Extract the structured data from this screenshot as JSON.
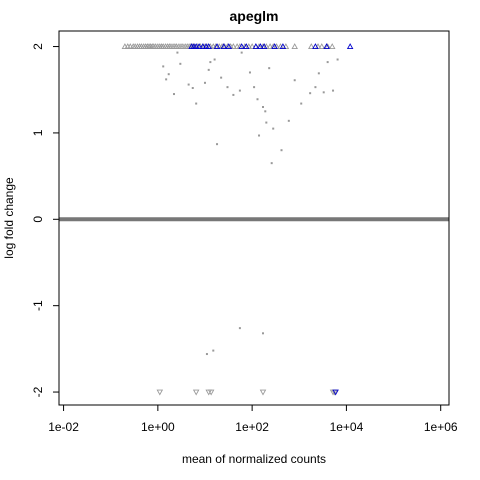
{
  "chart_data": {
    "type": "scatter",
    "title": "apeglm",
    "xlabel": "mean of normalized counts",
    "ylabel": "log fold change",
    "x_scale": "log10",
    "xlim": [
      0.008,
      1500000.0
    ],
    "ylim": [
      -2.15,
      2.18
    ],
    "x_ticks": [
      {
        "value": 0.01,
        "label": "1e-02"
      },
      {
        "value": 1,
        "label": "1e+00"
      },
      {
        "value": 100,
        "label": "1e+02"
      },
      {
        "value": 10000,
        "label": "1e+04"
      },
      {
        "value": 1000000,
        "label": "1e+06"
      }
    ],
    "y_ticks": [
      {
        "value": -2,
        "label": "-2"
      },
      {
        "value": -1,
        "label": "-1"
      },
      {
        "value": 0,
        "label": "0"
      },
      {
        "value": 1,
        "label": "1"
      },
      {
        "value": 2,
        "label": "2"
      }
    ],
    "reference_line_y": 0,
    "colors": {
      "nonsignificant": "#999999",
      "significant": "#0000cc",
      "zero_band": "#777777",
      "axis": "#000000"
    },
    "zero_band_x_range": [
      0.008,
      1500000.0
    ],
    "series": [
      {
        "kind": "points_in_range",
        "color_key": "nonsignificant",
        "points": [
          [
            1.3,
            1.77
          ],
          [
            1.5,
            1.62
          ],
          [
            1.7,
            1.68
          ],
          [
            2.2,
            1.45
          ],
          [
            2.6,
            1.93
          ],
          [
            3.0,
            1.8
          ],
          [
            4.5,
            1.56
          ],
          [
            5.5,
            1.52
          ],
          [
            6.5,
            1.34
          ],
          [
            10,
            1.58
          ],
          [
            12,
            1.73
          ],
          [
            13,
            1.82
          ],
          [
            16,
            1.85
          ],
          [
            18,
            0.87
          ],
          [
            22,
            1.64
          ],
          [
            30,
            1.53
          ],
          [
            40,
            1.44
          ],
          [
            55,
            1.49
          ],
          [
            60,
            1.93
          ],
          [
            90,
            1.7
          ],
          [
            110,
            1.53
          ],
          [
            130,
            1.39
          ],
          [
            140,
            0.97
          ],
          [
            170,
            1.3
          ],
          [
            190,
            1.25
          ],
          [
            200,
            1.12
          ],
          [
            230,
            1.75
          ],
          [
            260,
            0.65
          ],
          [
            280,
            1.05
          ],
          [
            420,
            0.8
          ],
          [
            600,
            1.14
          ],
          [
            800,
            1.61
          ],
          [
            1100,
            1.34
          ],
          [
            1700,
            1.46
          ],
          [
            2200,
            1.53
          ],
          [
            2600,
            1.69
          ],
          [
            3300,
            1.47
          ],
          [
            4000,
            1.82
          ],
          [
            5200,
            1.49
          ],
          [
            6500,
            1.85
          ],
          [
            55,
            -1.26
          ],
          [
            170,
            -1.32
          ],
          [
            11,
            -1.56
          ],
          [
            15,
            -1.52
          ]
        ]
      },
      {
        "kind": "capped_upper",
        "marker": "triangle-up",
        "color_key": "nonsignificant",
        "x": [
          0.2,
          0.23,
          0.26,
          0.3,
          0.33,
          0.37,
          0.41,
          0.45,
          0.5,
          0.55,
          0.6,
          0.65,
          0.7,
          0.76,
          0.82,
          0.9,
          1.0,
          1.1,
          1.2,
          1.3,
          1.45,
          1.6,
          1.75,
          1.9,
          2.1,
          2.3,
          2.5,
          2.8,
          3.1,
          3.4,
          3.8,
          4.2,
          4.6,
          5.0,
          5.5,
          6.0,
          7.0,
          8.0,
          9.5,
          11,
          13,
          15,
          17,
          20,
          23,
          26,
          30,
          35,
          40,
          48,
          55,
          70,
          85,
          100,
          120,
          140,
          170,
          200,
          240,
          280,
          330,
          400,
          520,
          800,
          1800,
          2500,
          3000,
          4000,
          5000
        ]
      },
      {
        "kind": "capped_upper",
        "marker": "triangle-up",
        "color_key": "significant",
        "x": [
          5.2,
          5.8,
          6.5,
          7.5,
          9,
          10.5,
          12,
          18,
          25,
          32,
          60,
          75,
          120,
          150,
          180,
          300,
          450,
          2200,
          3800,
          12000
        ]
      },
      {
        "kind": "capped_lower",
        "marker": "triangle-down",
        "color_key": "nonsignificant",
        "x": [
          1.1,
          6.5,
          12,
          13.5,
          170,
          5200,
          5600
        ]
      },
      {
        "kind": "capped_lower",
        "marker": "triangle-down",
        "color_key": "significant",
        "x": [
          5900
        ]
      }
    ]
  }
}
